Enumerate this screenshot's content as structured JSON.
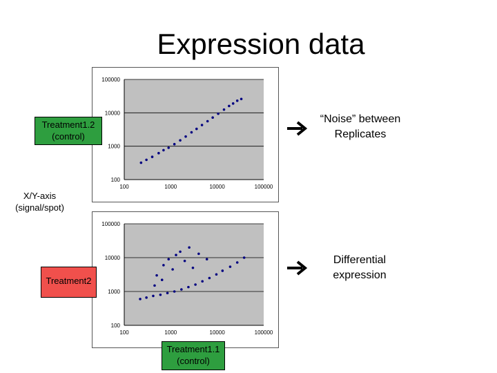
{
  "slide": {
    "title": "Expression data",
    "treatment12_label": [
      "Treatment1.2",
      "(control)"
    ],
    "axis_note": [
      "X/Y-axis",
      "(signal/spot)"
    ],
    "treatment2_label": "Treatment2",
    "treatment11_label": [
      "Treatment1.1",
      "(control)"
    ],
    "note_top": [
      "“Noise” between",
      "Replicates"
    ],
    "note_bottom": [
      "Differential",
      "expression"
    ],
    "colors": {
      "treatment1_box": "#2e9e3f",
      "treatment2_box": "#f0504c",
      "plot_area": "#c0c0c0",
      "points": "#000080",
      "arrow": "#000000"
    },
    "icons": [
      "arrow-right-icon",
      "arrow-right-icon"
    ]
  },
  "chart_data": [
    {
      "type": "scatter",
      "title": "",
      "xlabel": "",
      "ylabel": "",
      "x_scale": "log",
      "y_scale": "log",
      "xlim": [
        100,
        100000
      ],
      "ylim": [
        100,
        100000
      ],
      "x_ticks": [
        "100",
        "1000",
        "10000",
        "100000"
      ],
      "y_ticks": [
        "100",
        "1000",
        "10000",
        "100000"
      ],
      "grid": "horizontal",
      "series": [
        {
          "x": [
            230,
            300,
            400,
            550,
            700,
            900,
            1200,
            1600,
            2100,
            2800,
            3600,
            4700,
            6200,
            8000,
            10500,
            14000,
            18000,
            22000,
            27000,
            33000
          ],
          "y": [
            320,
            390,
            480,
            620,
            760,
            900,
            1150,
            1500,
            1950,
            2600,
            3300,
            4300,
            5600,
            7200,
            9400,
            12500,
            16000,
            19000,
            23000,
            26000
          ]
        }
      ]
    },
    {
      "type": "scatter",
      "title": "",
      "xlabel": "",
      "ylabel": "",
      "x_scale": "log",
      "y_scale": "log",
      "xlim": [
        100,
        100000
      ],
      "ylim": [
        100,
        100000
      ],
      "x_ticks": [
        "100",
        "1000",
        "10000",
        "100000"
      ],
      "y_ticks": [
        "100",
        "1000",
        "10000",
        "100000"
      ],
      "grid": "horizontal",
      "series": [
        {
          "x": [
            220,
            300,
            420,
            600,
            850,
            1200,
            1700,
            2400,
            3400,
            4800,
            6800,
            9600,
            13000,
            19000,
            27000,
            38000,
            500,
            700,
            900,
            1300,
            2000,
            3000,
            450,
            650,
            1100,
            1600,
            2500,
            4000,
            6000
          ],
          "y": [
            600,
            660,
            740,
            800,
            900,
            1000,
            1150,
            1350,
            1600,
            2000,
            2500,
            3200,
            4100,
            5400,
            7200,
            10000,
            3000,
            6000,
            9000,
            12000,
            8000,
            5000,
            1500,
            2200,
            4500,
            15000,
            20000,
            13000,
            9000
          ]
        }
      ]
    }
  ]
}
